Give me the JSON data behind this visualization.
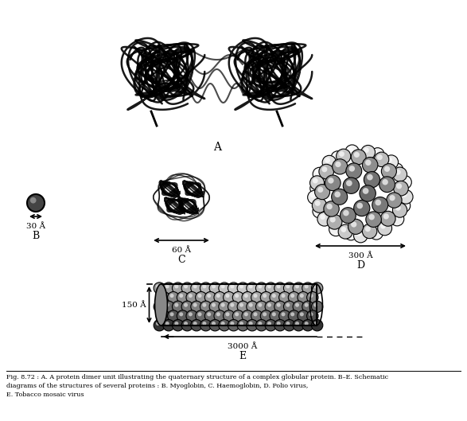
{
  "caption_line1": "Fig. 8.72 : A. A protein dimer unit illustrating the quaternary structure of a complex globular protein. B–E. Schematic",
  "caption_line2": "diagrams of the structures of several proteins : B. Myoglobin, C. Haemoglobin, D. Polio virus,",
  "caption_line3": "E. Tobacco mosaic virus",
  "label_A": "A",
  "label_B": "B",
  "label_C": "C",
  "label_D": "D",
  "label_E": "E",
  "dim_B": "30 Å",
  "dim_C": "60 Å",
  "dim_D": "300 Å",
  "dim_E_h": "150 Å",
  "dim_E_w": "3000 Å",
  "bg_color": "#ffffff",
  "line_color": "#000000",
  "fig_width": 5.87,
  "fig_height": 5.29,
  "dpi": 100
}
